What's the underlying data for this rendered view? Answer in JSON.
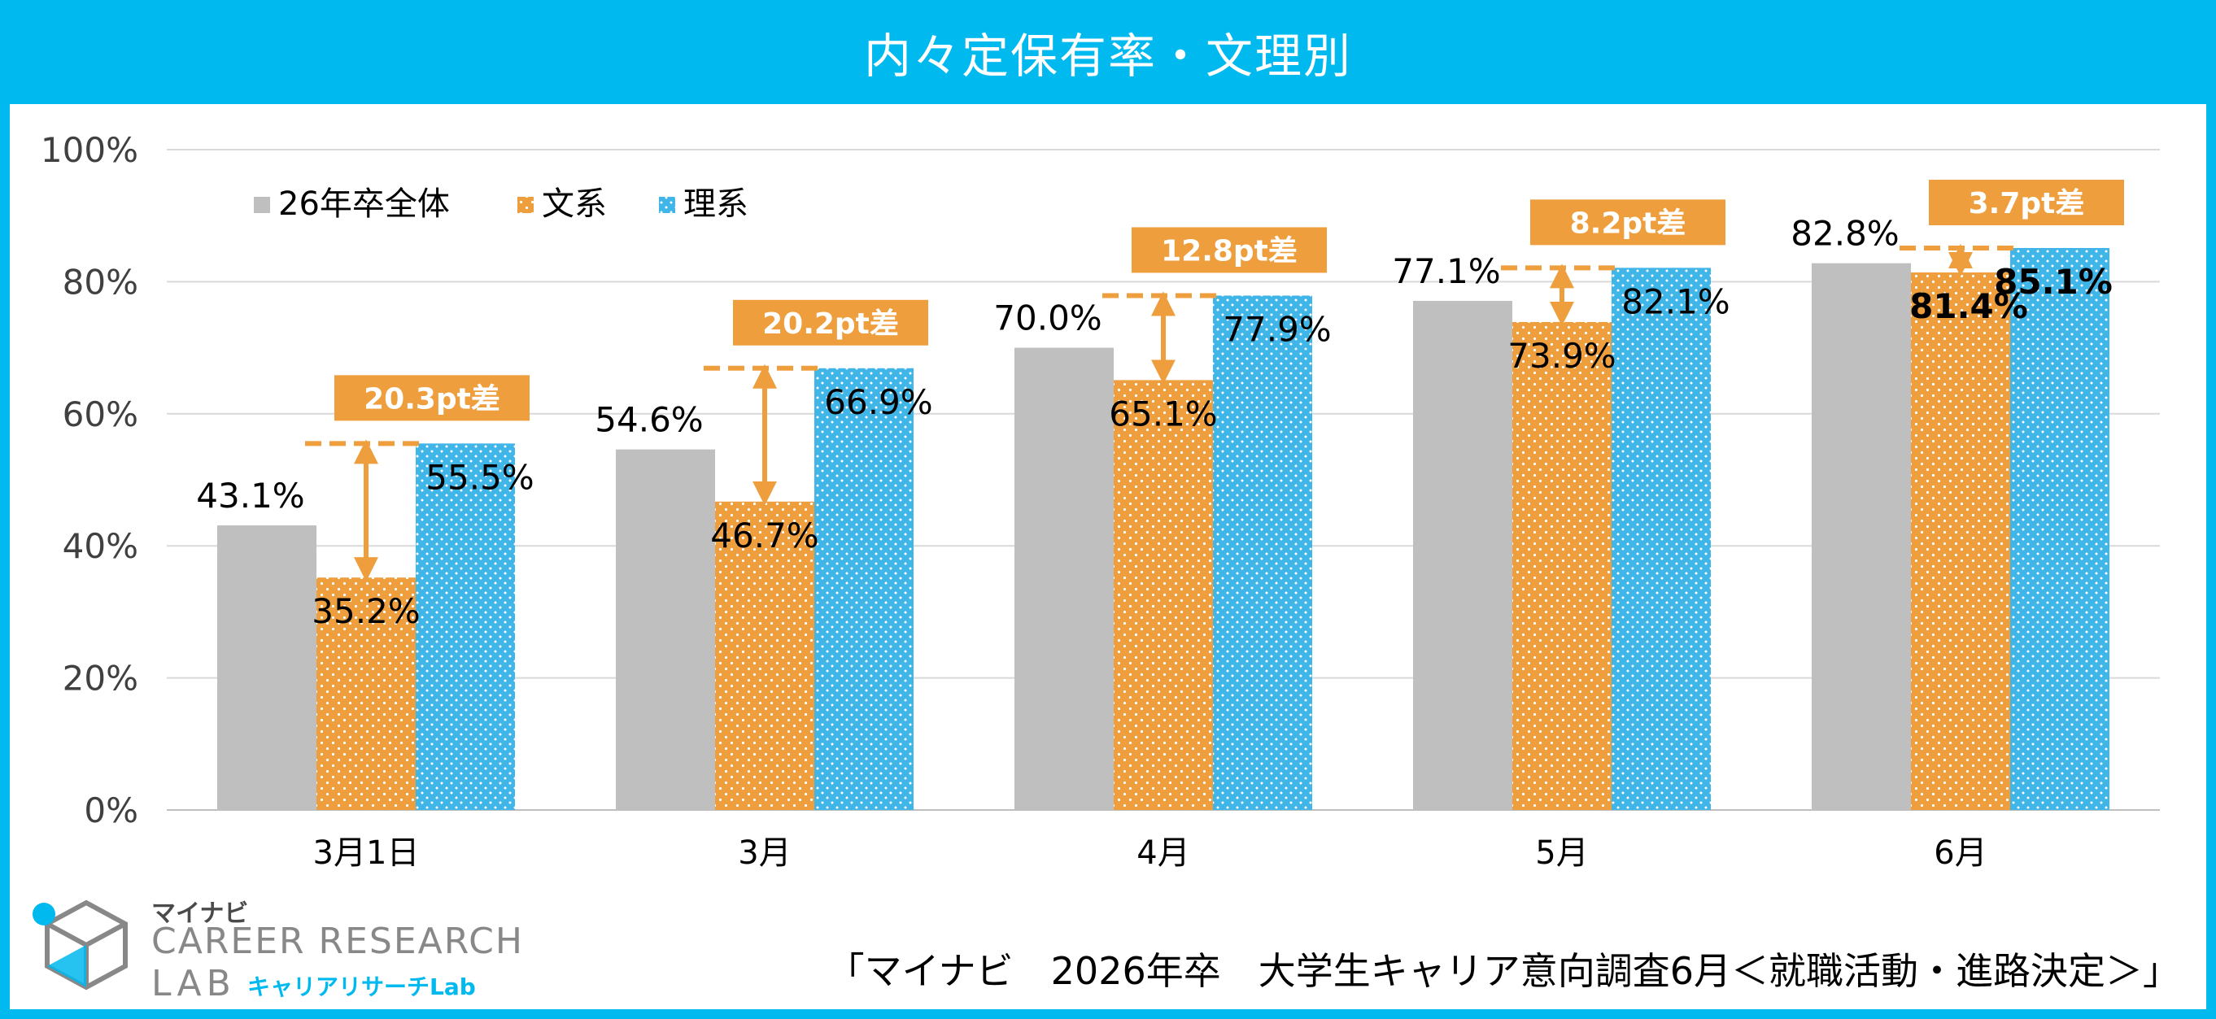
{
  "header": {
    "title": "内々定保有率・文理別"
  },
  "logo": {
    "kana": "マイナビ",
    "name": "CAREER RESEARCH",
    "name_line2": "LAB",
    "sub": "キャリアリサーチLab"
  },
  "source": "「マイナビ　2026年卒　大学生キャリア意向調査6月＜就職活動・進路決定＞」",
  "colors": {
    "all": "#bfbfbf",
    "bunkei": "#ef9e3d",
    "rikei": "#3fb5e8",
    "accent": "#ef9e3d",
    "header": "#00b9ef"
  },
  "chart_data": {
    "type": "bar",
    "categories": [
      "3月1日",
      "3月",
      "4月",
      "5月",
      "6月"
    ],
    "series": [
      {
        "name": "26年卒全体",
        "values": [
          43.1,
          54.6,
          70.0,
          77.1,
          82.8
        ],
        "labels": [
          "43.1%",
          "54.6%",
          "70.0%",
          "77.1%",
          "82.8%"
        ]
      },
      {
        "name": "文系",
        "values": [
          35.2,
          46.7,
          65.1,
          73.9,
          81.4
        ],
        "labels": [
          "35.2%",
          "46.7%",
          "65.1%",
          "73.9%",
          "81.4%"
        ]
      },
      {
        "name": "理系",
        "values": [
          55.5,
          66.9,
          77.9,
          82.1,
          85.1
        ],
        "labels": [
          "55.5%",
          "66.9%",
          "77.9%",
          "82.1%",
          "85.1%"
        ]
      }
    ],
    "differences": [
      "20.3pt差",
      "20.2pt差",
      "12.8pt差",
      "8.2pt差",
      "3.7pt差"
    ],
    "ylim": [
      0,
      100
    ],
    "yticks": [
      0,
      20,
      40,
      60,
      80,
      100
    ],
    "ytick_labels": [
      "0%",
      "20%",
      "40%",
      "60%",
      "80%",
      "100%"
    ],
    "grid": true,
    "legend": "top-left",
    "title": "内々定保有率・文理別"
  }
}
